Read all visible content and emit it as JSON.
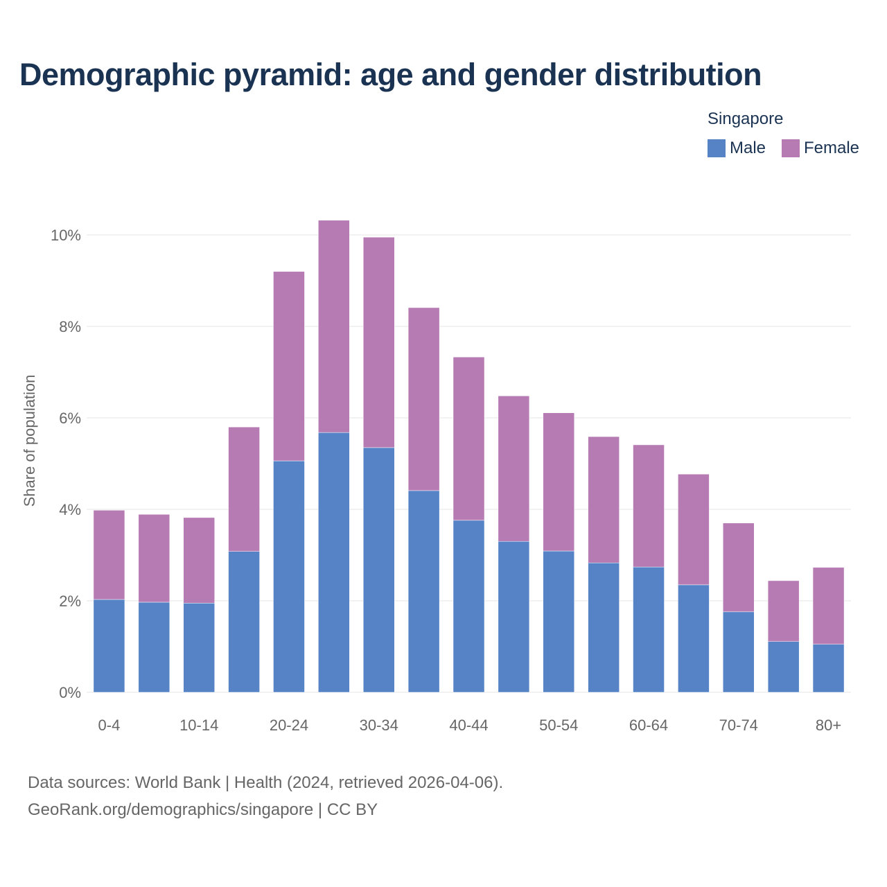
{
  "title": "Demographic pyramid: age and gender distribution",
  "footer": {
    "line1": "Data sources: World Bank | Health (2024, retrieved 2026-04-06).",
    "line2": "GeoRank.org/demographics/singapore | CC BY"
  },
  "chart_data": {
    "type": "bar",
    "stacked": true,
    "title": "Demographic pyramid: age and gender distribution",
    "legend_title": "Singapore",
    "legend_placement": "top-right",
    "xlabel": "",
    "ylabel": "Share of population",
    "ylim": [
      0,
      10
    ],
    "yticks": [
      0,
      2,
      4,
      6,
      8,
      10
    ],
    "ytick_labels": [
      "0%",
      "2%",
      "4%",
      "6%",
      "8%",
      "10%"
    ],
    "categories": [
      "0-4",
      "5-9",
      "10-14",
      "15-19",
      "20-24",
      "25-29",
      "30-34",
      "35-39",
      "40-44",
      "45-49",
      "50-54",
      "55-59",
      "60-64",
      "65-69",
      "70-74",
      "75-79",
      "80+"
    ],
    "xtick_labels": [
      "0-4",
      "",
      "10-14",
      "",
      "20-24",
      "",
      "30-34",
      "",
      "40-44",
      "",
      "50-54",
      "",
      "60-64",
      "",
      "70-74",
      "",
      "80+"
    ],
    "series": [
      {
        "name": "Male",
        "color": "#5583c6",
        "values": [
          2.03,
          1.97,
          1.95,
          3.08,
          5.06,
          5.68,
          5.35,
          4.41,
          3.76,
          3.3,
          3.09,
          2.83,
          2.74,
          2.35,
          1.76,
          1.11,
          1.05
        ]
      },
      {
        "name": "Female",
        "color": "#b77bb4",
        "values": [
          1.95,
          1.92,
          1.87,
          2.72,
          4.14,
          4.64,
          4.6,
          4.0,
          3.57,
          3.18,
          3.02,
          2.76,
          2.67,
          2.42,
          1.94,
          1.33,
          1.68
        ]
      }
    ],
    "grid": true
  }
}
